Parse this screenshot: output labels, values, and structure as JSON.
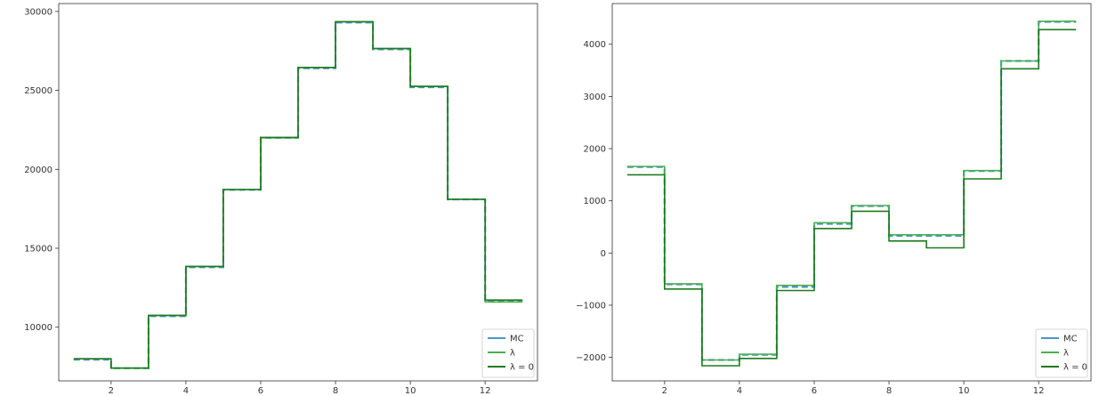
{
  "chart_data": [
    {
      "type": "line",
      "step": "post",
      "title": "",
      "xlabel": "",
      "ylabel": "",
      "xlim": [
        0.6,
        13.4
      ],
      "ylim": [
        6600,
        30500
      ],
      "xticks": [
        2,
        4,
        6,
        8,
        10,
        12
      ],
      "yticks": [
        10000,
        15000,
        20000,
        25000,
        30000
      ],
      "x": [
        1,
        2,
        3,
        4,
        5,
        6,
        7,
        8,
        9,
        10,
        11,
        12,
        13
      ],
      "legend": {
        "location": "lower right"
      },
      "series": [
        {
          "name": "MC",
          "values": [
            7950,
            7400,
            10700,
            13800,
            18700,
            22000,
            26400,
            29300,
            27600,
            25200,
            18100,
            11650,
            11650
          ]
        },
        {
          "name": "$\\lambda$",
          "values": [
            8000,
            7400,
            10750,
            13850,
            18720,
            22000,
            26450,
            29350,
            27650,
            25250,
            18100,
            11600,
            11600
          ]
        },
        {
          "name": "$\\lambda = 0$",
          "values": [
            8000,
            7420,
            10750,
            13850,
            18720,
            22020,
            26450,
            29350,
            27650,
            25250,
            18100,
            11720,
            11720
          ]
        }
      ]
    },
    {
      "type": "line",
      "step": "post",
      "title": "",
      "xlabel": "",
      "ylabel": "",
      "xlim": [
        0.6,
        13.4
      ],
      "ylim": [
        -2450,
        4780
      ],
      "xticks": [
        2,
        4,
        6,
        8,
        10,
        12
      ],
      "yticks": [
        -2000,
        -1000,
        0,
        1000,
        2000,
        3000,
        4000
      ],
      "x": [
        1,
        2,
        3,
        4,
        5,
        6,
        7,
        8,
        9,
        10,
        11,
        12,
        13
      ],
      "legend": {
        "location": "lower right"
      },
      "series": [
        {
          "name": "MC",
          "values": [
            1650,
            -600,
            -2050,
            -1950,
            -650,
            560,
            900,
            330,
            330,
            1570,
            3680,
            4430,
            4430
          ]
        },
        {
          "name": "$\\lambda$",
          "values": [
            1660,
            -590,
            -2050,
            -1940,
            -620,
            580,
            910,
            350,
            350,
            1580,
            3680,
            4440,
            4440
          ]
        },
        {
          "name": "$\\lambda = 0$",
          "values": [
            1500,
            -690,
            -2160,
            -2020,
            -720,
            470,
            800,
            230,
            100,
            1420,
            3530,
            4280,
            4280
          ]
        }
      ]
    }
  ],
  "colors": {
    "series": [
      "#4a94c9",
      "#4caf50",
      "#1e7b1e"
    ],
    "axis": "#333333",
    "legend_border": "#cccccc"
  },
  "legend_labels": [
    "MC",
    "λ",
    "λ = 0"
  ]
}
